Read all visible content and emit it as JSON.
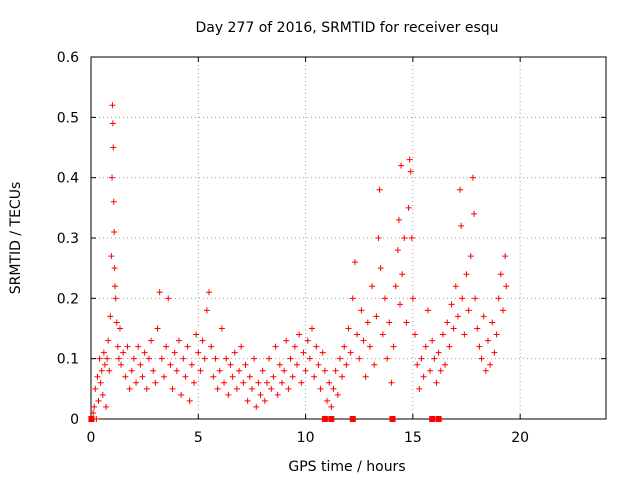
{
  "chart_data": {
    "type": "scatter",
    "title": "Day 277 of 2016, SRMTID for receiver esqu",
    "xlabel": "GPS time / hours",
    "ylabel": "SRMTID / TECUs",
    "xlim": [
      0,
      24
    ],
    "ylim": [
      0,
      0.6
    ],
    "x_ticks": [
      "0",
      "5",
      "10",
      "15",
      "20"
    ],
    "y_ticks": [
      "0",
      "0.1",
      "0.2",
      "0.3",
      "0.4",
      "0.5",
      "0.6"
    ],
    "grid": true,
    "marker_color": "#ff0000",
    "series": [
      {
        "marker": "plus",
        "points": [
          [
            0.05,
            0.0
          ],
          [
            0.1,
            0.01
          ],
          [
            0.15,
            0.02
          ],
          [
            0.2,
            0.05
          ],
          [
            0.25,
            0.0
          ],
          [
            0.3,
            0.07
          ],
          [
            0.35,
            0.03
          ],
          [
            0.4,
            0.1
          ],
          [
            0.45,
            0.06
          ],
          [
            0.5,
            0.08
          ],
          [
            0.55,
            0.04
          ],
          [
            0.6,
            0.11
          ],
          [
            0.65,
            0.09
          ],
          [
            0.7,
            0.02
          ],
          [
            0.75,
            0.1
          ],
          [
            0.8,
            0.13
          ],
          [
            0.85,
            0.08
          ],
          [
            0.9,
            0.17
          ],
          [
            0.95,
            0.27
          ],
          [
            0.98,
            0.4
          ],
          [
            1.0,
            0.52
          ],
          [
            1.02,
            0.49
          ],
          [
            1.04,
            0.45
          ],
          [
            1.06,
            0.36
          ],
          [
            1.08,
            0.31
          ],
          [
            1.1,
            0.25
          ],
          [
            1.12,
            0.22
          ],
          [
            1.15,
            0.2
          ],
          [
            1.2,
            0.16
          ],
          [
            1.25,
            0.12
          ],
          [
            1.3,
            0.1
          ],
          [
            1.35,
            0.15
          ],
          [
            1.4,
            0.09
          ],
          [
            1.5,
            0.11
          ],
          [
            1.6,
            0.07
          ],
          [
            1.7,
            0.12
          ],
          [
            1.8,
            0.05
          ],
          [
            1.9,
            0.08
          ],
          [
            2.0,
            0.1
          ],
          [
            2.1,
            0.06
          ],
          [
            2.2,
            0.12
          ],
          [
            2.3,
            0.09
          ],
          [
            2.4,
            0.07
          ],
          [
            2.5,
            0.11
          ],
          [
            2.6,
            0.05
          ],
          [
            2.7,
            0.1
          ],
          [
            2.8,
            0.13
          ],
          [
            2.9,
            0.08
          ],
          [
            3.0,
            0.06
          ],
          [
            3.1,
            0.15
          ],
          [
            3.2,
            0.21
          ],
          [
            3.3,
            0.1
          ],
          [
            3.4,
            0.07
          ],
          [
            3.5,
            0.12
          ],
          [
            3.6,
            0.2
          ],
          [
            3.7,
            0.09
          ],
          [
            3.8,
            0.05
          ],
          [
            3.9,
            0.11
          ],
          [
            4.0,
            0.08
          ],
          [
            4.1,
            0.13
          ],
          [
            4.2,
            0.04
          ],
          [
            4.3,
            0.1
          ],
          [
            4.4,
            0.07
          ],
          [
            4.5,
            0.12
          ],
          [
            4.6,
            0.03
          ],
          [
            4.7,
            0.09
          ],
          [
            4.8,
            0.06
          ],
          [
            4.9,
            0.14
          ],
          [
            5.0,
            0.11
          ],
          [
            5.1,
            0.08
          ],
          [
            5.2,
            0.13
          ],
          [
            5.3,
            0.1
          ],
          [
            5.4,
            0.18
          ],
          [
            5.5,
            0.21
          ],
          [
            5.6,
            0.12
          ],
          [
            5.7,
            0.07
          ],
          [
            5.8,
            0.1
          ],
          [
            5.9,
            0.05
          ],
          [
            6.0,
            0.08
          ],
          [
            6.1,
            0.15
          ],
          [
            6.2,
            0.06
          ],
          [
            6.3,
            0.1
          ],
          [
            6.4,
            0.04
          ],
          [
            6.5,
            0.09
          ],
          [
            6.6,
            0.07
          ],
          [
            6.7,
            0.11
          ],
          [
            6.8,
            0.05
          ],
          [
            6.9,
            0.08
          ],
          [
            7.0,
            0.12
          ],
          [
            7.1,
            0.06
          ],
          [
            7.2,
            0.09
          ],
          [
            7.3,
            0.03
          ],
          [
            7.4,
            0.07
          ],
          [
            7.5,
            0.05
          ],
          [
            7.6,
            0.1
          ],
          [
            7.7,
            0.02
          ],
          [
            7.8,
            0.06
          ],
          [
            7.9,
            0.04
          ],
          [
            8.0,
            0.08
          ],
          [
            8.1,
            0.03
          ],
          [
            8.2,
            0.06
          ],
          [
            8.3,
            0.1
          ],
          [
            8.4,
            0.05
          ],
          [
            8.5,
            0.07
          ],
          [
            8.6,
            0.12
          ],
          [
            8.7,
            0.04
          ],
          [
            8.8,
            0.09
          ],
          [
            8.9,
            0.06
          ],
          [
            9.0,
            0.08
          ],
          [
            9.1,
            0.13
          ],
          [
            9.2,
            0.05
          ],
          [
            9.3,
            0.1
          ],
          [
            9.4,
            0.07
          ],
          [
            9.5,
            0.12
          ],
          [
            9.6,
            0.09
          ],
          [
            9.7,
            0.14
          ],
          [
            9.8,
            0.06
          ],
          [
            9.9,
            0.11
          ],
          [
            10.0,
            0.08
          ],
          [
            10.1,
            0.13
          ],
          [
            10.2,
            0.1
          ],
          [
            10.3,
            0.15
          ],
          [
            10.4,
            0.07
          ],
          [
            10.5,
            0.12
          ],
          [
            10.6,
            0.09
          ],
          [
            10.7,
            0.05
          ],
          [
            10.8,
            0.11
          ],
          [
            10.9,
            0.08
          ],
          [
            11.0,
            0.03
          ],
          [
            11.1,
            0.06
          ],
          [
            11.2,
            0.02
          ],
          [
            11.3,
            0.05
          ],
          [
            11.4,
            0.08
          ],
          [
            11.5,
            0.04
          ],
          [
            11.6,
            0.1
          ],
          [
            11.7,
            0.07
          ],
          [
            11.8,
            0.12
          ],
          [
            11.9,
            0.09
          ],
          [
            12.0,
            0.15
          ],
          [
            12.1,
            0.11
          ],
          [
            12.2,
            0.2
          ],
          [
            12.3,
            0.26
          ],
          [
            12.4,
            0.14
          ],
          [
            12.5,
            0.1
          ],
          [
            12.6,
            0.18
          ],
          [
            12.7,
            0.13
          ],
          [
            12.8,
            0.07
          ],
          [
            12.9,
            0.16
          ],
          [
            13.0,
            0.12
          ],
          [
            13.1,
            0.22
          ],
          [
            13.2,
            0.09
          ],
          [
            13.3,
            0.17
          ],
          [
            13.4,
            0.3
          ],
          [
            13.45,
            0.38
          ],
          [
            13.5,
            0.25
          ],
          [
            13.6,
            0.14
          ],
          [
            13.7,
            0.2
          ],
          [
            13.8,
            0.1
          ],
          [
            13.9,
            0.16
          ],
          [
            14.0,
            0.06
          ],
          [
            14.1,
            0.12
          ],
          [
            14.2,
            0.22
          ],
          [
            14.3,
            0.28
          ],
          [
            14.35,
            0.33
          ],
          [
            14.4,
            0.19
          ],
          [
            14.45,
            0.42
          ],
          [
            14.5,
            0.24
          ],
          [
            14.6,
            0.3
          ],
          [
            14.7,
            0.16
          ],
          [
            14.8,
            0.35
          ],
          [
            14.85,
            0.43
          ],
          [
            14.9,
            0.41
          ],
          [
            14.95,
            0.3
          ],
          [
            15.0,
            0.2
          ],
          [
            15.1,
            0.14
          ],
          [
            15.2,
            0.09
          ],
          [
            15.3,
            0.05
          ],
          [
            15.4,
            0.1
          ],
          [
            15.5,
            0.07
          ],
          [
            15.6,
            0.12
          ],
          [
            15.7,
            0.18
          ],
          [
            15.8,
            0.08
          ],
          [
            15.9,
            0.13
          ],
          [
            16.0,
            0.1
          ],
          [
            16.1,
            0.06
          ],
          [
            16.2,
            0.11
          ],
          [
            16.3,
            0.08
          ],
          [
            16.4,
            0.14
          ],
          [
            16.5,
            0.09
          ],
          [
            16.6,
            0.16
          ],
          [
            16.7,
            0.12
          ],
          [
            16.8,
            0.19
          ],
          [
            16.9,
            0.15
          ],
          [
            17.0,
            0.22
          ],
          [
            17.1,
            0.17
          ],
          [
            17.2,
            0.38
          ],
          [
            17.25,
            0.32
          ],
          [
            17.3,
            0.2
          ],
          [
            17.4,
            0.14
          ],
          [
            17.5,
            0.24
          ],
          [
            17.6,
            0.18
          ],
          [
            17.7,
            0.27
          ],
          [
            17.8,
            0.4
          ],
          [
            17.85,
            0.34
          ],
          [
            17.9,
            0.2
          ],
          [
            18.0,
            0.15
          ],
          [
            18.1,
            0.12
          ],
          [
            18.2,
            0.1
          ],
          [
            18.3,
            0.17
          ],
          [
            18.4,
            0.08
          ],
          [
            18.5,
            0.13
          ],
          [
            18.6,
            0.09
          ],
          [
            18.7,
            0.16
          ],
          [
            18.8,
            0.11
          ],
          [
            18.9,
            0.14
          ],
          [
            19.0,
            0.2
          ],
          [
            19.1,
            0.24
          ],
          [
            19.2,
            0.18
          ],
          [
            19.3,
            0.27
          ],
          [
            19.35,
            0.22
          ]
        ]
      },
      {
        "marker": "square",
        "points": [
          [
            0.02,
            0.0
          ],
          [
            10.9,
            0.0
          ],
          [
            11.2,
            0.0
          ],
          [
            12.2,
            0.0
          ],
          [
            14.05,
            0.0
          ],
          [
            15.9,
            0.0
          ],
          [
            16.2,
            0.0
          ]
        ]
      }
    ]
  }
}
